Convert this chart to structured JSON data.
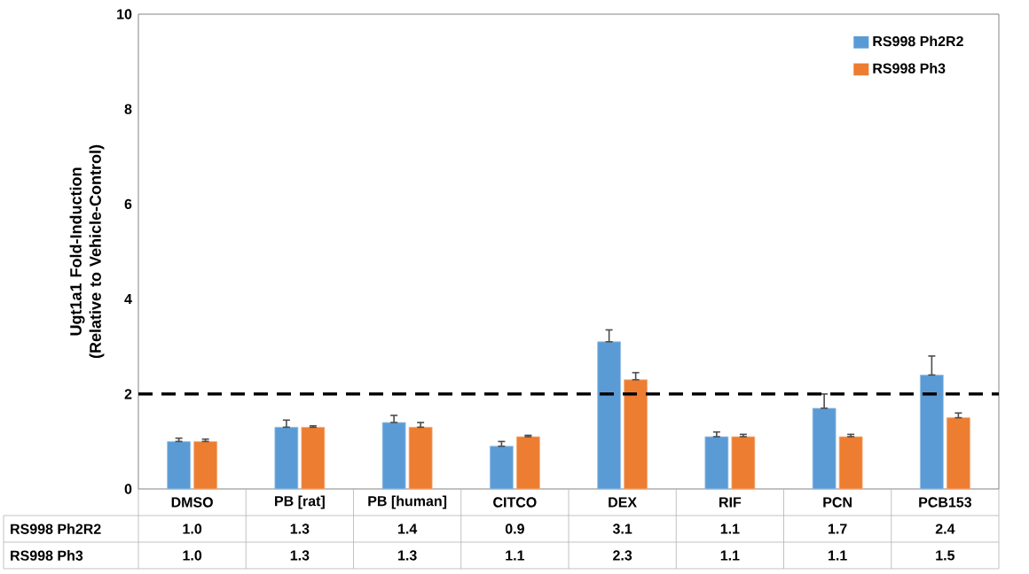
{
  "chart_data": {
    "type": "bar",
    "ylabel": "Ugt1a1 Fold-Induction (Relative to Vehicle-Control)",
    "categories": [
      "DMSO",
      "PB [rat]",
      "PB [human]",
      "CITCO",
      "DEX",
      "RIF",
      "PCN",
      "PCB153"
    ],
    "series": [
      {
        "name": "RS998 Ph2R2",
        "color": "#5b9bd5",
        "values": [
          1.0,
          1.3,
          1.4,
          0.9,
          3.1,
          1.1,
          1.7,
          2.4
        ],
        "value_labels": [
          "1.0",
          "1.3",
          "1.4",
          "0.9",
          "3.1",
          "1.1",
          "1.7",
          "2.4"
        ],
        "errors": [
          [
            1.0,
            1.07
          ],
          [
            1.3,
            1.45
          ],
          [
            1.4,
            1.55
          ],
          [
            0.9,
            1.0
          ],
          [
            3.1,
            3.35
          ],
          [
            1.1,
            1.2
          ],
          [
            1.7,
            2.0
          ],
          [
            2.4,
            2.8
          ]
        ]
      },
      {
        "name": "RS998 Ph3",
        "color": "#ed7d31",
        "values": [
          1.0,
          1.3,
          1.3,
          1.1,
          2.3,
          1.1,
          1.1,
          1.5
        ],
        "value_labels": [
          "1.0",
          "1.3",
          "1.3",
          "1.1",
          "2.3",
          "1.1",
          "1.1",
          "1.5"
        ],
        "errors": [
          [
            1.0,
            1.05
          ],
          [
            1.3,
            1.33
          ],
          [
            1.3,
            1.4
          ],
          [
            1.1,
            1.13
          ],
          [
            2.3,
            2.45
          ],
          [
            1.1,
            1.15
          ],
          [
            1.1,
            1.15
          ],
          [
            1.5,
            1.6
          ]
        ]
      }
    ],
    "ylim": [
      0,
      10
    ],
    "yticks": [
      0,
      2,
      4,
      6,
      8,
      10
    ],
    "legend": "top right",
    "ref_lines": [
      {
        "axis": "y",
        "value": 2,
        "color": "#000000",
        "line_style": "dashed"
      }
    ]
  }
}
